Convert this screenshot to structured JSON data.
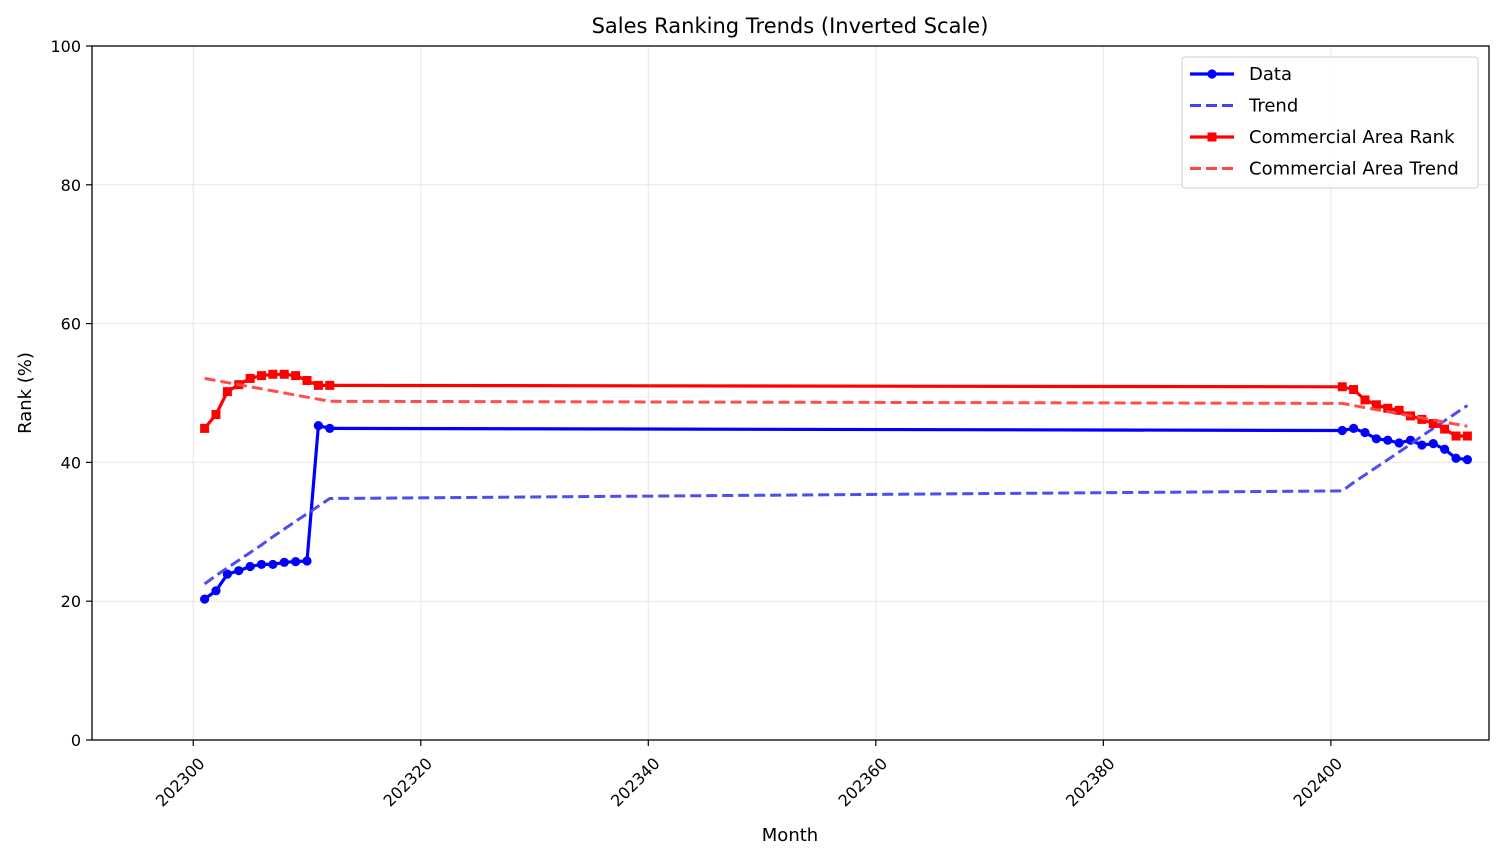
{
  "chart_data": {
    "type": "line",
    "title": "Sales Ranking Trends (Inverted Scale)",
    "xlabel": "Month",
    "ylabel": "Rank (%)",
    "xlim": [
      202291.1,
      202413.9
    ],
    "ylim": [
      0,
      100
    ],
    "xticks": [
      202300,
      202320,
      202340,
      202360,
      202380,
      202400
    ],
    "yticks": [
      0,
      20,
      40,
      60,
      80,
      100
    ],
    "grid": true,
    "legend_position": "top-right",
    "x": [
      202301,
      202302,
      202303,
      202304,
      202305,
      202306,
      202307,
      202308,
      202309,
      202310,
      202311,
      202312,
      202401,
      202402,
      202403,
      202404,
      202405,
      202406,
      202407,
      202408,
      202409,
      202410,
      202411,
      202412
    ],
    "series": [
      {
        "name": "Data",
        "style": "solid",
        "marker": "circle",
        "color": "#0000ff",
        "values": [
          20.3,
          21.5,
          23.9,
          24.4,
          25.0,
          25.3,
          25.3,
          25.6,
          25.7,
          25.8,
          45.3,
          44.9,
          44.6,
          44.9,
          44.3,
          43.4,
          43.2,
          42.8,
          43.2,
          42.5,
          42.7,
          41.9,
          40.6,
          40.4
        ]
      },
      {
        "name": "Trend",
        "style": "dashed",
        "marker": "none",
        "color": "#4444ee",
        "values": [
          22.5,
          23.7,
          24.8,
          25.9,
          27.0,
          28.1,
          29.3,
          30.4,
          31.5,
          32.6,
          33.7,
          34.8,
          35.9,
          37.1,
          38.2,
          39.3,
          40.4,
          41.5,
          42.6,
          43.8,
          44.9,
          46.0,
          47.1,
          48.2
        ]
      },
      {
        "name": "Commercial Area Rank",
        "style": "solid",
        "marker": "square",
        "color": "#ff0000",
        "values": [
          44.9,
          46.9,
          50.2,
          51.2,
          52.1,
          52.5,
          52.7,
          52.7,
          52.5,
          51.8,
          51.1,
          51.1,
          50.9,
          50.5,
          49.0,
          48.3,
          47.8,
          47.5,
          46.7,
          46.2,
          45.6,
          44.8,
          43.8,
          43.8
        ]
      },
      {
        "name": "Commercial Area Trend",
        "style": "dashed",
        "marker": "none",
        "color": "#ff4444",
        "values": [
          52.1,
          51.8,
          51.5,
          51.2,
          50.9,
          50.6,
          50.3,
          50.0,
          49.7,
          49.4,
          49.1,
          48.8,
          48.5,
          48.2,
          47.9,
          47.6,
          47.3,
          47.0,
          46.7,
          46.4,
          46.1,
          45.8,
          45.5,
          45.2
        ]
      }
    ]
  }
}
